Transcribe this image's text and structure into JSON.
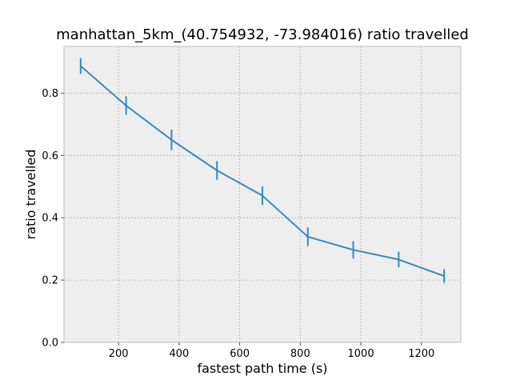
{
  "chart_data": {
    "type": "line",
    "title": "manhattan_5km_(40.754932, -73.984016) ratio travelled",
    "xlabel": "fastest path time (s)",
    "ylabel": "ratio travelled",
    "xlim": [
      20,
      1330
    ],
    "ylim": [
      0.0,
      0.95
    ],
    "x_ticks": [
      200,
      400,
      600,
      800,
      1000,
      1200
    ],
    "y_ticks": [
      0.0,
      0.2,
      0.4,
      0.6,
      0.8
    ],
    "x_tick_labels": [
      "200",
      "400",
      "600",
      "800",
      "1000",
      "1200"
    ],
    "y_tick_labels": [
      "0.0",
      "0.2",
      "0.4",
      "0.6",
      "0.8"
    ],
    "grid": true,
    "series": [
      {
        "name": "ratio travelled",
        "color": "#348abd",
        "x": [
          75,
          225,
          375,
          525,
          675,
          825,
          975,
          1125,
          1275
        ],
        "y": [
          0.887,
          0.76,
          0.65,
          0.552,
          0.471,
          0.339,
          0.297,
          0.266,
          0.213
        ],
        "yerr": [
          0.025,
          0.03,
          0.033,
          0.03,
          0.03,
          0.03,
          0.028,
          0.025,
          0.022
        ]
      }
    ]
  },
  "style": {
    "plot_background": "#eeeeee",
    "grid_color": "#b2b2b2",
    "spine_color": "#bcbcbc"
  }
}
